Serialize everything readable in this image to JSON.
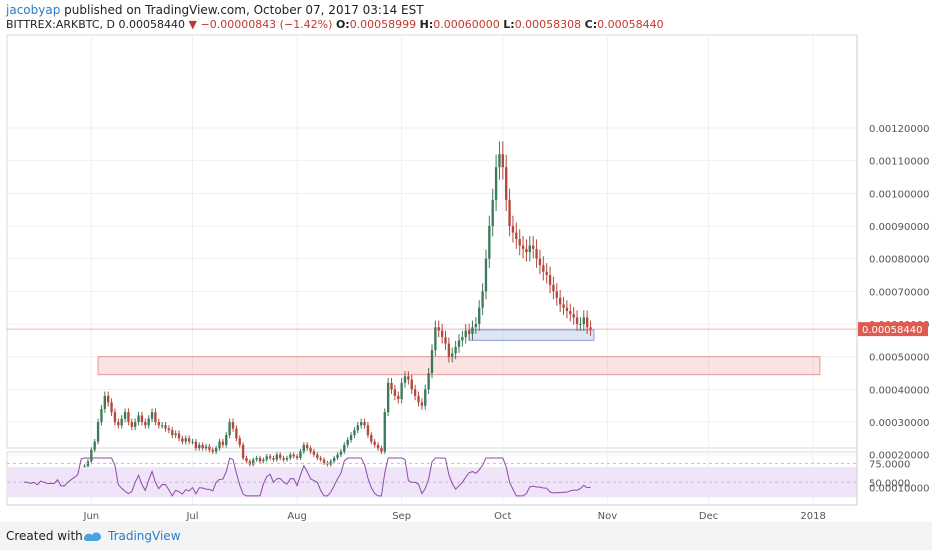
{
  "header": {
    "author": "jacobyap",
    "published_text": "published on TradingView.com, October 07, 2017 03:14 EST",
    "symbol": "BITTREX:ARKBTC, D",
    "last": "0.00058440",
    "change": "−0.00000843 (−1.42%)",
    "open_label": "O:",
    "open": "0.00058999",
    "high_label": "H:",
    "high": "0.00060000",
    "low_label": "L:",
    "low": "0.00058308",
    "close_label": "C:",
    "close": "0.00058440"
  },
  "footer": {
    "created_with": "Created with",
    "brand": "TradingView"
  },
  "colors": {
    "up": "#3d7a5a",
    "down": "#b5473c",
    "price_tag": "#e05a50",
    "rsi_line": "#8e4aa8",
    "rsi_band": "#efe4f8"
  },
  "chart_data": {
    "type": "candlestick",
    "price_axis": {
      "min": 8e-05,
      "max": 0.00125,
      "ticks": [
        "0.00010000",
        "0.00020000",
        "0.00030000",
        "0.00040000",
        "0.00050000",
        "0.00060000",
        "0.00070000",
        "0.00080000",
        "0.00090000",
        "0.00100000",
        "0.00110000",
        "0.00120000"
      ]
    },
    "current_price_label": "0.00058440",
    "current_price": 0.0005844,
    "x_labels": [
      "Jun",
      "Jul",
      "Aug",
      "Sep",
      "Oct",
      "Nov",
      "Dec",
      "2018"
    ],
    "day_range": [
      -25,
      227
    ],
    "label_days": [
      0,
      30,
      61,
      92,
      122,
      153,
      183,
      214
    ],
    "closes": [
      0.000112,
      0.000112,
      0.00011,
      0.000112,
      0.000108,
      0.000114,
      0.000112,
      0.00011,
      0.000108,
      0.00011,
      0.000112,
      0.000108,
      0.000106,
      0.00011,
      0.000112,
      0.000118,
      0.000125,
      0.000145,
      0.000165,
      0.00018,
      0.000215,
      0.00024,
      0.0003,
      0.00034,
      0.00038,
      0.00036,
      0.00033,
      0.0003,
      0.00029,
      0.00031,
      0.00033,
      0.0003,
      0.000285,
      0.0003,
      0.00032,
      0.0003,
      0.00029,
      0.00031,
      0.00033,
      0.0003,
      0.00029,
      0.00029,
      0.00028,
      0.000275,
      0.00026,
      0.000265,
      0.00025,
      0.00024,
      0.00025,
      0.00024,
      0.00024,
      0.00022,
      0.00023,
      0.00022,
      0.000225,
      0.000215,
      0.00021,
      0.00022,
      0.00024,
      0.00023,
      0.00026,
      0.0003,
      0.00028,
      0.00025,
      0.00023,
      0.00019,
      0.00018,
      0.00017,
      0.000185,
      0.00019,
      0.00018,
      0.000185,
      0.000195,
      0.00019,
      0.000185,
      0.0002,
      0.00019,
      0.000185,
      0.00019,
      0.0002,
      0.000195,
      0.00019,
      0.00021,
      0.00023,
      0.00022,
      0.00021,
      0.0002,
      0.00019,
      0.000185,
      0.000175,
      0.00017,
      0.00018,
      0.00019,
      0.0002,
      0.00021,
      0.00023,
      0.000245,
      0.00026,
      0.000275,
      0.00029,
      0.0003,
      0.00029,
      0.00026,
      0.00024,
      0.00023,
      0.00022,
      0.00021,
      0.00033,
      0.00042,
      0.0004,
      0.00038,
      0.00037,
      0.00042,
      0.00044,
      0.00043,
      0.0004,
      0.00038,
      0.00036,
      0.00035,
      0.0004,
      0.00045,
      0.00052,
      0.00059,
      0.00058,
      0.00056,
      0.00054,
      0.0005,
      0.00051,
      0.00053,
      0.00055,
      0.00056,
      0.00058,
      0.00057,
      0.00059,
      0.0006,
      0.00065,
      0.0007,
      0.0008,
      0.0009,
      0.00098,
      0.00108,
      0.00112,
      0.00108,
      0.00098,
      0.0009,
      0.00088,
      0.00086,
      0.00084,
      0.00083,
      0.00082,
      0.00084,
      0.00083,
      0.0008,
      0.00078,
      0.00076,
      0.00075,
      0.00072,
      0.0007,
      0.00068,
      0.00066,
      0.00065,
      0.00064,
      0.00063,
      0.00062,
      0.0006,
      0.0006,
      0.00062,
      0.00059,
      0.000584
    ],
    "rsi": {
      "levels": [
        50,
        75
      ],
      "tick_labels": [
        "50.0000",
        "75.0000"
      ],
      "band": [
        30,
        70
      ],
      "range": [
        20,
        90
      ]
    },
    "zones": [
      {
        "from_day": 2,
        "to_day": 216,
        "low": 0.000445,
        "high": 0.0005,
        "color": "#e88080"
      },
      {
        "from_day": 112,
        "to_day": 149,
        "low": 0.00055,
        "high": 0.000582,
        "color": "#6b8cce"
      }
    ]
  }
}
